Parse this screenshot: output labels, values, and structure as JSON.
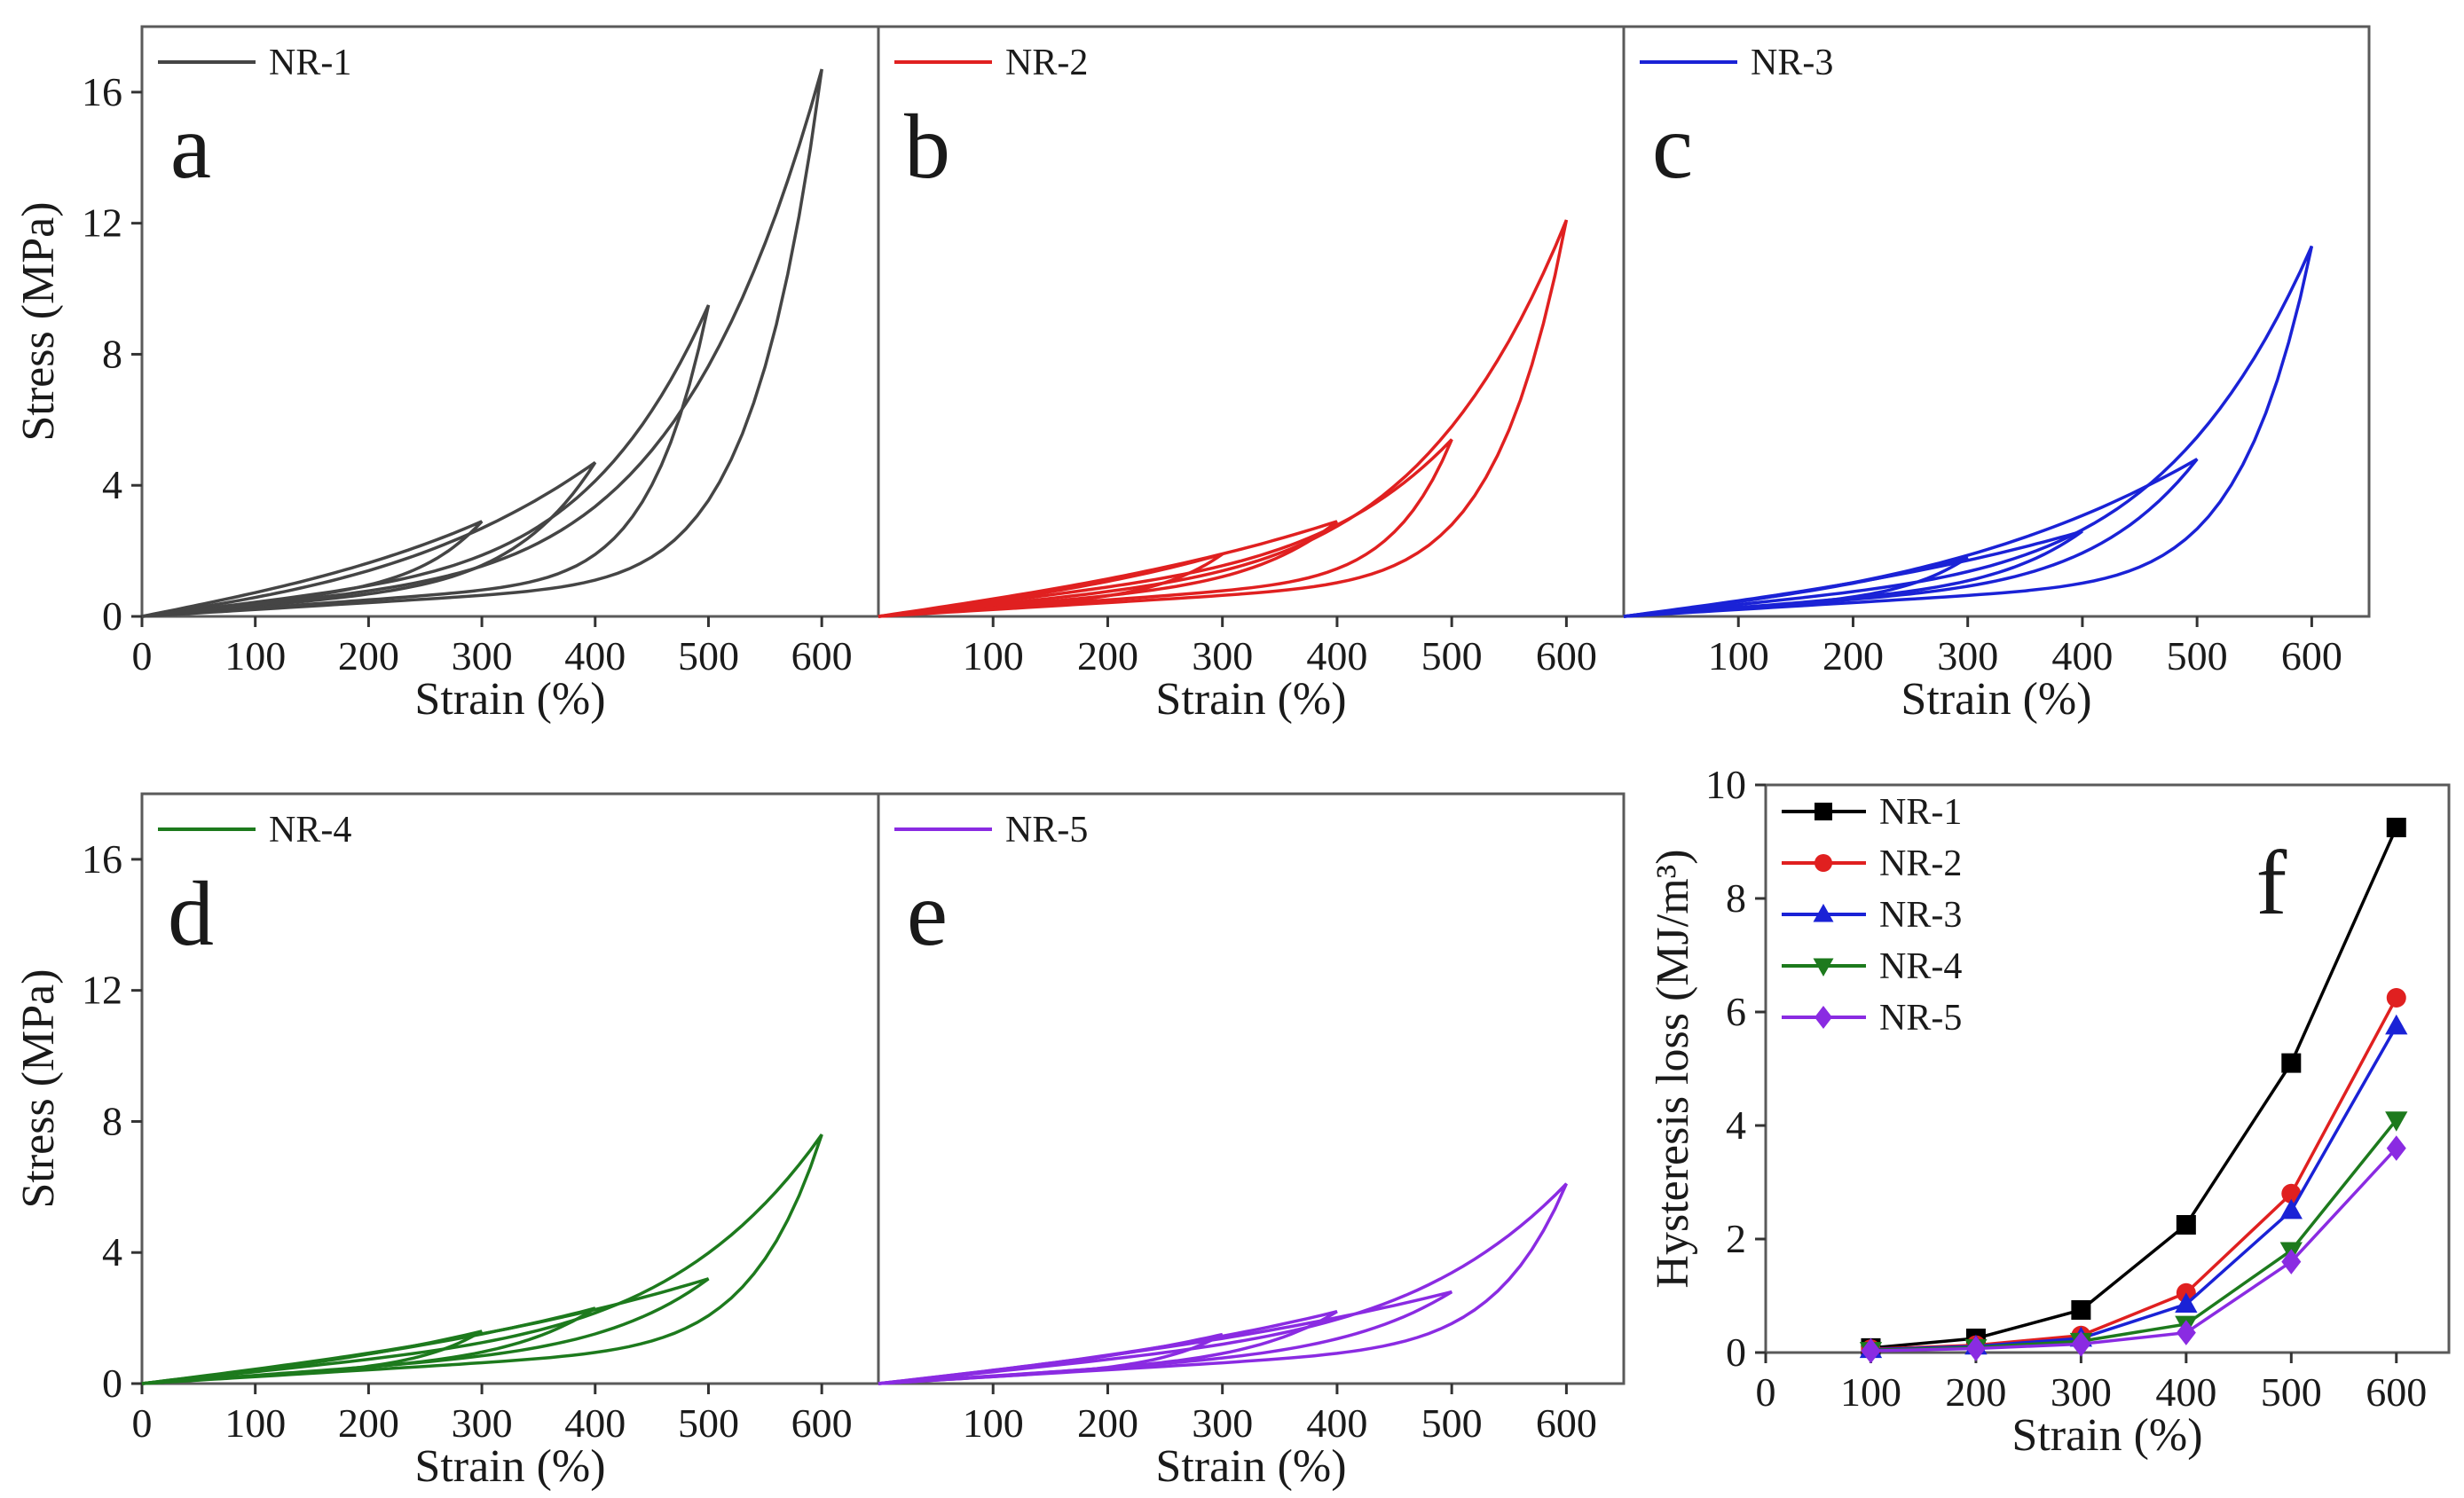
{
  "chart_data": [
    {
      "panel": "a",
      "type": "line",
      "series_name": "NR-1",
      "color": "#454545",
      "xlabel": "Strain (%)",
      "ylabel": "Stress (MPa)",
      "xlim": [
        0,
        650
      ],
      "ylim": [
        0,
        18
      ],
      "x_ticks": [
        "0",
        "100",
        "200",
        "300",
        "400",
        "500",
        "600"
      ],
      "y_ticks": [
        "0",
        "4",
        "8",
        "12",
        "16"
      ],
      "legend": "top-left",
      "cycles": [
        {
          "max_strain": 300,
          "max_stress": 2.9
        },
        {
          "max_strain": 400,
          "max_stress": 4.7
        },
        {
          "max_strain": 500,
          "max_stress": 9.5
        },
        {
          "max_strain": 600,
          "max_stress": 16.7
        }
      ]
    },
    {
      "panel": "b",
      "type": "line",
      "series_name": "NR-2",
      "color": "#e02020",
      "xlabel": "Strain (%)",
      "ylabel": "Stress (MPa)",
      "xlim": [
        0,
        650
      ],
      "ylim": [
        0,
        18
      ],
      "x_ticks": [
        "100",
        "200",
        "300",
        "400",
        "500",
        "600"
      ],
      "legend": "top-left",
      "cycles": [
        {
          "max_strain": 300,
          "max_stress": 1.9
        },
        {
          "max_strain": 400,
          "max_stress": 2.9
        },
        {
          "max_strain": 500,
          "max_stress": 5.4
        },
        {
          "max_strain": 600,
          "max_stress": 12.1
        }
      ]
    },
    {
      "panel": "c",
      "type": "line",
      "series_name": "NR-3",
      "color": "#1a22d6",
      "xlabel": "Strain (%)",
      "ylabel": "Stress (MPa)",
      "xlim": [
        0,
        650
      ],
      "ylim": [
        0,
        18
      ],
      "x_ticks": [
        "100",
        "200",
        "300",
        "400",
        "500",
        "600"
      ],
      "legend": "top-left",
      "cycles": [
        {
          "max_strain": 300,
          "max_stress": 1.8
        },
        {
          "max_strain": 400,
          "max_stress": 2.6
        },
        {
          "max_strain": 500,
          "max_stress": 4.8
        },
        {
          "max_strain": 600,
          "max_stress": 11.3
        }
      ]
    },
    {
      "panel": "d",
      "type": "line",
      "series_name": "NR-4",
      "color": "#1d7a1d",
      "xlabel": "Strain (%)",
      "ylabel": "Stress (MPa)",
      "xlim": [
        0,
        650
      ],
      "ylim": [
        0,
        18
      ],
      "x_ticks": [
        "0",
        "100",
        "200",
        "300",
        "400",
        "500",
        "600"
      ],
      "y_ticks": [
        "0",
        "4",
        "8",
        "12",
        "16"
      ],
      "legend": "top-left",
      "cycles": [
        {
          "max_strain": 300,
          "max_stress": 1.6
        },
        {
          "max_strain": 400,
          "max_stress": 2.3
        },
        {
          "max_strain": 500,
          "max_stress": 3.2
        },
        {
          "max_strain": 600,
          "max_stress": 7.6
        }
      ]
    },
    {
      "panel": "e",
      "type": "line",
      "series_name": "NR-5",
      "color": "#8a2be2",
      "xlabel": "Strain (%)",
      "ylabel": "Stress (MPa)",
      "xlim": [
        0,
        650
      ],
      "ylim": [
        0,
        18
      ],
      "x_ticks": [
        "100",
        "200",
        "300",
        "400",
        "500",
        "600"
      ],
      "legend": "top-left",
      "cycles": [
        {
          "max_strain": 300,
          "max_stress": 1.5
        },
        {
          "max_strain": 400,
          "max_stress": 2.2
        },
        {
          "max_strain": 500,
          "max_stress": 2.8
        },
        {
          "max_strain": 600,
          "max_stress": 6.1
        }
      ]
    },
    {
      "panel": "f",
      "type": "line",
      "xlabel": "Strain (%)",
      "ylabel": "Hysteresis loss (MJ/m³)",
      "xlim": [
        0,
        650
      ],
      "ylim": [
        0,
        10
      ],
      "x_ticks": [
        "0",
        "100",
        "200",
        "300",
        "400",
        "500",
        "600"
      ],
      "y_ticks": [
        "0",
        "2",
        "4",
        "6",
        "8",
        "10"
      ],
      "legend": "top-left",
      "x": [
        100,
        200,
        300,
        400,
        500,
        600
      ],
      "series": [
        {
          "name": "NR-1",
          "color": "#000000",
          "marker": "square",
          "values": [
            0.08,
            0.25,
            0.75,
            2.25,
            5.1,
            9.25
          ]
        },
        {
          "name": "NR-2",
          "color": "#e02020",
          "marker": "circle",
          "values": [
            0.06,
            0.13,
            0.3,
            1.05,
            2.8,
            6.25
          ]
        },
        {
          "name": "NR-3",
          "color": "#1a22d6",
          "marker": "triangle-up",
          "values": [
            0.05,
            0.11,
            0.25,
            0.85,
            2.5,
            5.75
          ]
        },
        {
          "name": "NR-4",
          "color": "#1d7a1d",
          "marker": "triangle-down",
          "values": [
            0.04,
            0.09,
            0.2,
            0.5,
            1.8,
            4.1
          ]
        },
        {
          "name": "NR-5",
          "color": "#8a2be2",
          "marker": "diamond",
          "values": [
            0.03,
            0.07,
            0.15,
            0.35,
            1.6,
            3.6
          ]
        }
      ]
    }
  ]
}
